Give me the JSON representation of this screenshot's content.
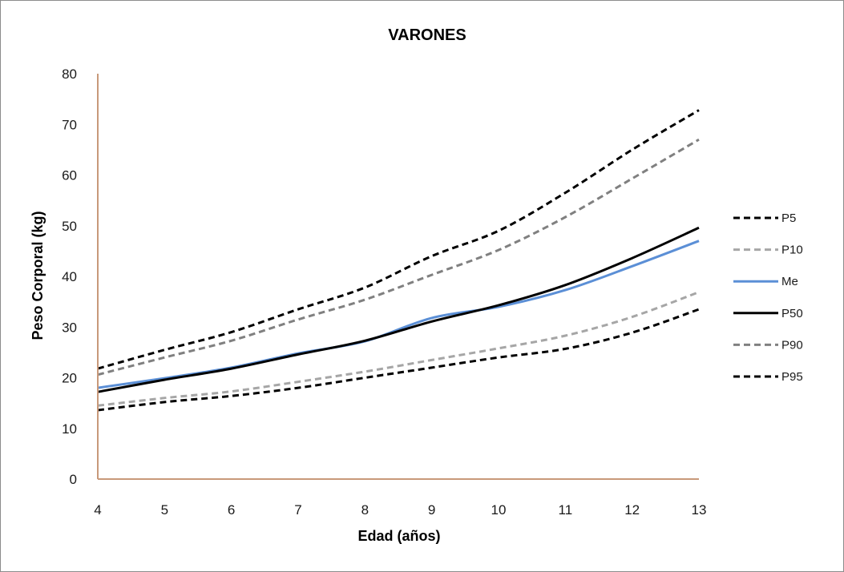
{
  "chart_data": {
    "type": "line",
    "title": "VARONES",
    "xlabel": "Edad (años)",
    "ylabel": "Peso Corporal (kg)",
    "x": [
      4,
      5,
      6,
      7,
      8,
      9,
      10,
      11,
      12,
      13
    ],
    "xlim": [
      4,
      13
    ],
    "ylim": [
      0,
      80
    ],
    "yticks": [
      0,
      10,
      20,
      30,
      40,
      50,
      60,
      70,
      80
    ],
    "grid": false,
    "legend_position": "right",
    "series": [
      {
        "name": "P5",
        "color": "#000000",
        "dash": "dashed",
        "values": [
          21.8,
          25.5,
          29.0,
          33.5,
          37.8,
          44.0,
          49.0,
          56.5,
          65.0,
          72.8
        ]
      },
      {
        "name": "P10",
        "color": "#a6a6a6",
        "dash": "dashed",
        "values": [
          14.5,
          16.0,
          17.3,
          19.2,
          21.2,
          23.5,
          25.8,
          28.3,
          32.0,
          36.9
        ]
      },
      {
        "name": "Me",
        "color": "#5b8fd6",
        "dash": "solid",
        "values": [
          18.0,
          19.9,
          22.0,
          24.8,
          27.2,
          31.8,
          34.0,
          37.3,
          42.0,
          47.0
        ]
      },
      {
        "name": "P50",
        "color": "#000000",
        "dash": "solid",
        "values": [
          17.2,
          19.6,
          21.8,
          24.6,
          27.3,
          31.1,
          34.3,
          38.3,
          43.6,
          49.6
        ]
      },
      {
        "name": "P90",
        "color": "#808080",
        "dash": "dashed",
        "values": [
          20.6,
          24.0,
          27.3,
          31.5,
          35.4,
          40.3,
          45.2,
          51.7,
          59.3,
          67.0
        ]
      },
      {
        "name": "P95",
        "color": "#000000",
        "dash": "dashed",
        "values": [
          13.6,
          15.2,
          16.4,
          18.0,
          20.0,
          22.0,
          24.0,
          25.7,
          28.9,
          33.5
        ]
      }
    ]
  }
}
